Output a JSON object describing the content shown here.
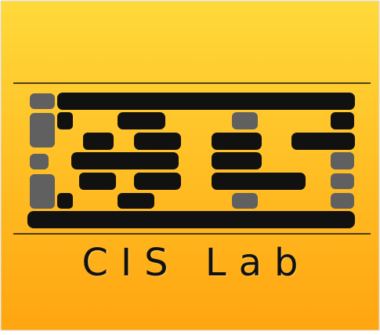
{
  "logo": {
    "text": "CIS Lab",
    "gradient_top": "#FFD93A",
    "gradient_bottom": "#FFA510",
    "block_color": "#111111",
    "cell_color": "#606060",
    "rule_color": "#111111"
  }
}
